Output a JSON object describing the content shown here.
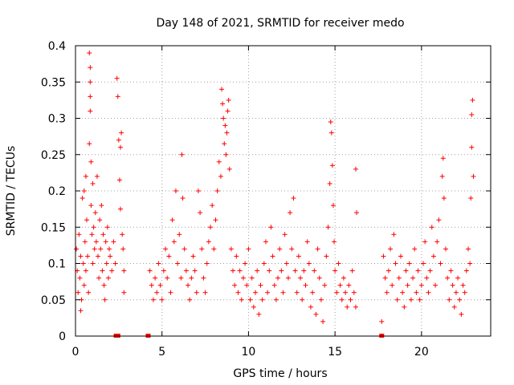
{
  "chart_data": {
    "type": "scatter",
    "title": "Day 148 of 2021, SRMTID for receiver medo",
    "xlabel": "GPS time / hours",
    "ylabel": "SRMTID / TECUs",
    "xlim": [
      0,
      24
    ],
    "ylim": [
      0,
      0.4
    ],
    "xticks": [
      0,
      5,
      10,
      15,
      20
    ],
    "xtick_labels": [
      "0",
      "5",
      "10",
      "15",
      "20"
    ],
    "yticks": [
      0,
      0.05,
      0.1,
      0.15,
      0.2,
      0.25,
      0.3,
      0.35,
      0.4
    ],
    "ytick_labels": [
      "0",
      "0.05",
      "0.1",
      "0.15",
      "0.2",
      "0.25",
      "0.3",
      "0.35",
      "0.4"
    ],
    "grid": true,
    "marker": "plus",
    "color": "#ff0000",
    "series": [
      {
        "name": "SRMTID",
        "points": [
          [
            0.05,
            0.12
          ],
          [
            0.1,
            0.09
          ],
          [
            0.15,
            0.06
          ],
          [
            0.2,
            0.14
          ],
          [
            0.25,
            0.08
          ],
          [
            0.3,
            0.11
          ],
          [
            0.3,
            0.035
          ],
          [
            0.35,
            0.05
          ],
          [
            0.4,
            0.19
          ],
          [
            0.45,
            0.1
          ],
          [
            0.5,
            0.07
          ],
          [
            0.5,
            0.2
          ],
          [
            0.55,
            0.13
          ],
          [
            0.6,
            0.09
          ],
          [
            0.6,
            0.22
          ],
          [
            0.65,
            0.16
          ],
          [
            0.7,
            0.11
          ],
          [
            0.75,
            0.06
          ],
          [
            0.8,
            0.265
          ],
          [
            0.8,
            0.39
          ],
          [
            0.85,
            0.37
          ],
          [
            0.85,
            0.35
          ],
          [
            0.85,
            0.33
          ],
          [
            0.85,
            0.31
          ],
          [
            0.9,
            0.24
          ],
          [
            0.9,
            0.18
          ],
          [
            0.95,
            0.14
          ],
          [
            1.0,
            0.1
          ],
          [
            1.0,
            0.21
          ],
          [
            1.05,
            0.15
          ],
          [
            1.1,
            0.12
          ],
          [
            1.15,
            0.17
          ],
          [
            1.2,
            0.13
          ],
          [
            1.25,
            0.22
          ],
          [
            1.3,
            0.11
          ],
          [
            1.35,
            0.08
          ],
          [
            1.4,
            0.16
          ],
          [
            1.45,
            0.12
          ],
          [
            1.5,
            0.18
          ],
          [
            1.55,
            0.09
          ],
          [
            1.6,
            0.14
          ],
          [
            1.65,
            0.07
          ],
          [
            1.7,
            0.05
          ],
          [
            1.75,
            0.13
          ],
          [
            1.8,
            0.1
          ],
          [
            1.85,
            0.15
          ],
          [
            1.9,
            0.08
          ],
          [
            1.95,
            0.12
          ],
          [
            2.0,
            0.11
          ],
          [
            2.1,
            0.09
          ],
          [
            2.2,
            0.13
          ],
          [
            2.3,
            0.1
          ],
          [
            2.4,
            0.355
          ],
          [
            2.45,
            0.33
          ],
          [
            2.5,
            0.27
          ],
          [
            2.55,
            0.215
          ],
          [
            2.6,
            0.26
          ],
          [
            2.6,
            0.175
          ],
          [
            2.65,
            0.28
          ],
          [
            2.7,
            0.14
          ],
          [
            2.75,
            0.12
          ],
          [
            2.8,
            0.09
          ],
          [
            2.8,
            0.06
          ],
          [
            4.3,
            0.09
          ],
          [
            4.4,
            0.07
          ],
          [
            4.5,
            0.05
          ],
          [
            4.6,
            0.08
          ],
          [
            4.7,
            0.06
          ],
          [
            4.8,
            0.1
          ],
          [
            4.9,
            0.07
          ],
          [
            5.0,
            0.05
          ],
          [
            5.1,
            0.09
          ],
          [
            5.2,
            0.12
          ],
          [
            5.3,
            0.08
          ],
          [
            5.4,
            0.11
          ],
          [
            5.5,
            0.06
          ],
          [
            5.6,
            0.16
          ],
          [
            5.7,
            0.13
          ],
          [
            5.8,
            0.2
          ],
          [
            5.9,
            0.1
          ],
          [
            6.0,
            0.14
          ],
          [
            6.1,
            0.08
          ],
          [
            6.15,
            0.25
          ],
          [
            6.2,
            0.19
          ],
          [
            6.3,
            0.12
          ],
          [
            6.4,
            0.09
          ],
          [
            6.5,
            0.07
          ],
          [
            6.6,
            0.05
          ],
          [
            6.7,
            0.08
          ],
          [
            6.8,
            0.11
          ],
          [
            6.9,
            0.09
          ],
          [
            7.0,
            0.06
          ],
          [
            7.1,
            0.2
          ],
          [
            7.2,
            0.17
          ],
          [
            7.3,
            0.12
          ],
          [
            7.4,
            0.08
          ],
          [
            7.5,
            0.06
          ],
          [
            7.6,
            0.1
          ],
          [
            7.7,
            0.13
          ],
          [
            7.8,
            0.15
          ],
          [
            7.9,
            0.18
          ],
          [
            8.0,
            0.12
          ],
          [
            8.1,
            0.16
          ],
          [
            8.2,
            0.2
          ],
          [
            8.3,
            0.24
          ],
          [
            8.4,
            0.22
          ],
          [
            8.45,
            0.34
          ],
          [
            8.5,
            0.32
          ],
          [
            8.55,
            0.3
          ],
          [
            8.6,
            0.265
          ],
          [
            8.65,
            0.29
          ],
          [
            8.7,
            0.25
          ],
          [
            8.75,
            0.28
          ],
          [
            8.8,
            0.31
          ],
          [
            8.85,
            0.325
          ],
          [
            8.9,
            0.23
          ],
          [
            9.0,
            0.12
          ],
          [
            9.1,
            0.09
          ],
          [
            9.2,
            0.07
          ],
          [
            9.3,
            0.11
          ],
          [
            9.4,
            0.06
          ],
          [
            9.5,
            0.09
          ],
          [
            9.6,
            0.05
          ],
          [
            9.7,
            0.08
          ],
          [
            9.8,
            0.1
          ],
          [
            9.9,
            0.07
          ],
          [
            10.0,
            0.12
          ],
          [
            10.1,
            0.05
          ],
          [
            10.2,
            0.08
          ],
          [
            10.3,
            0.04
          ],
          [
            10.4,
            0.06
          ],
          [
            10.5,
            0.09
          ],
          [
            10.6,
            0.03
          ],
          [
            10.7,
            0.07
          ],
          [
            10.8,
            0.05
          ],
          [
            10.9,
            0.1
          ],
          [
            11.0,
            0.13
          ],
          [
            11.1,
            0.06
          ],
          [
            11.2,
            0.09
          ],
          [
            11.3,
            0.15
          ],
          [
            11.4,
            0.11
          ],
          [
            11.5,
            0.07
          ],
          [
            11.6,
            0.05
          ],
          [
            11.7,
            0.08
          ],
          [
            11.8,
            0.12
          ],
          [
            11.9,
            0.09
          ],
          [
            12.0,
            0.06
          ],
          [
            12.1,
            0.14
          ],
          [
            12.2,
            0.1
          ],
          [
            12.3,
            0.08
          ],
          [
            12.4,
            0.17
          ],
          [
            12.5,
            0.12
          ],
          [
            12.6,
            0.19
          ],
          [
            12.7,
            0.09
          ],
          [
            12.8,
            0.06
          ],
          [
            12.9,
            0.11
          ],
          [
            13.0,
            0.08
          ],
          [
            13.1,
            0.05
          ],
          [
            13.2,
            0.09
          ],
          [
            13.3,
            0.07
          ],
          [
            13.4,
            0.13
          ],
          [
            13.5,
            0.1
          ],
          [
            13.6,
            0.04
          ],
          [
            13.7,
            0.06
          ],
          [
            13.8,
            0.09
          ],
          [
            13.9,
            0.03
          ],
          [
            14.0,
            0.12
          ],
          [
            14.1,
            0.08
          ],
          [
            14.2,
            0.05
          ],
          [
            14.3,
            0.02
          ],
          [
            14.4,
            0.07
          ],
          [
            14.5,
            0.11
          ],
          [
            14.6,
            0.15
          ],
          [
            14.7,
            0.21
          ],
          [
            14.75,
            0.295
          ],
          [
            14.8,
            0.28
          ],
          [
            14.85,
            0.235
          ],
          [
            14.9,
            0.18
          ],
          [
            14.95,
            0.13
          ],
          [
            15.0,
            0.09
          ],
          [
            15.1,
            0.06
          ],
          [
            15.2,
            0.1
          ],
          [
            15.3,
            0.07
          ],
          [
            15.4,
            0.05
          ],
          [
            15.5,
            0.08
          ],
          [
            15.6,
            0.06
          ],
          [
            15.7,
            0.04
          ],
          [
            15.8,
            0.07
          ],
          [
            15.9,
            0.05
          ],
          [
            16.0,
            0.09
          ],
          [
            16.1,
            0.06
          ],
          [
            16.2,
            0.04
          ],
          [
            16.2,
            0.23
          ],
          [
            16.25,
            0.17
          ],
          [
            17.7,
            0.02
          ],
          [
            17.8,
            0.11
          ],
          [
            17.9,
            0.08
          ],
          [
            18.0,
            0.06
          ],
          [
            18.1,
            0.09
          ],
          [
            18.2,
            0.12
          ],
          [
            18.3,
            0.07
          ],
          [
            18.4,
            0.14
          ],
          [
            18.5,
            0.1
          ],
          [
            18.6,
            0.05
          ],
          [
            18.7,
            0.08
          ],
          [
            18.8,
            0.11
          ],
          [
            18.9,
            0.06
          ],
          [
            19.0,
            0.04
          ],
          [
            19.1,
            0.09
          ],
          [
            19.2,
            0.07
          ],
          [
            19.3,
            0.1
          ],
          [
            19.4,
            0.05
          ],
          [
            19.5,
            0.08
          ],
          [
            19.6,
            0.12
          ],
          [
            19.7,
            0.06
          ],
          [
            19.8,
            0.09
          ],
          [
            19.9,
            0.05
          ],
          [
            20.0,
            0.07
          ],
          [
            20.1,
            0.1
          ],
          [
            20.2,
            0.13
          ],
          [
            20.3,
            0.08
          ],
          [
            20.4,
            0.06
          ],
          [
            20.5,
            0.09
          ],
          [
            20.6,
            0.15
          ],
          [
            20.7,
            0.11
          ],
          [
            20.8,
            0.07
          ],
          [
            20.9,
            0.13
          ],
          [
            21.0,
            0.16
          ],
          [
            21.1,
            0.1
          ],
          [
            21.2,
            0.22
          ],
          [
            21.25,
            0.245
          ],
          [
            21.3,
            0.19
          ],
          [
            21.4,
            0.12
          ],
          [
            21.5,
            0.08
          ],
          [
            21.6,
            0.05
          ],
          [
            21.7,
            0.09
          ],
          [
            21.8,
            0.07
          ],
          [
            21.9,
            0.04
          ],
          [
            22.0,
            0.06
          ],
          [
            22.1,
            0.08
          ],
          [
            22.2,
            0.05
          ],
          [
            22.3,
            0.03
          ],
          [
            22.4,
            0.07
          ],
          [
            22.5,
            0.06
          ],
          [
            22.6,
            0.09
          ],
          [
            22.7,
            0.12
          ],
          [
            22.8,
            0.1
          ],
          [
            22.85,
            0.19
          ],
          [
            22.9,
            0.26
          ],
          [
            22.9,
            0.305
          ],
          [
            22.95,
            0.325
          ],
          [
            23.0,
            0.22
          ]
        ],
        "zero_markers_x": [
          2.35,
          2.45,
          4.2,
          17.7
        ]
      }
    ]
  }
}
